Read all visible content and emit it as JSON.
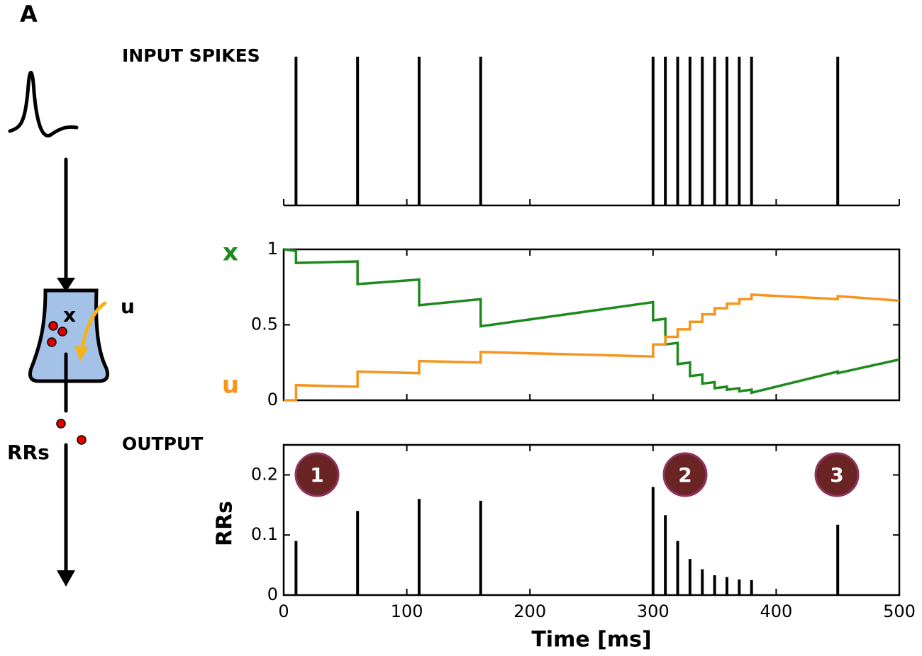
{
  "panel_label": "A",
  "diagram": {
    "pool_label": "x",
    "usage_label": "u",
    "output_label": "RRs"
  },
  "chart_data": [
    {
      "type": "event",
      "title": "INPUT SPIKES",
      "x": [
        10,
        60,
        110,
        160,
        300,
        310,
        320,
        330,
        340,
        350,
        360,
        370,
        380,
        450
      ],
      "color": "#000000",
      "xlim": [
        0,
        500
      ],
      "xticks": [
        0,
        100,
        200,
        300,
        400,
        500
      ]
    },
    {
      "type": "line",
      "x": [
        0,
        10,
        10,
        60,
        60,
        110,
        110,
        160,
        160,
        300,
        300,
        310,
        310,
        320,
        320,
        330,
        330,
        340,
        340,
        350,
        350,
        360,
        360,
        370,
        370,
        380,
        380,
        450,
        450,
        500
      ],
      "series": [
        {
          "name": "x",
          "color": "#1e8a1e",
          "values": [
            1.0,
            0.99,
            0.91,
            0.92,
            0.77,
            0.8,
            0.63,
            0.67,
            0.49,
            0.65,
            0.53,
            0.54,
            0.37,
            0.38,
            0.24,
            0.25,
            0.16,
            0.17,
            0.11,
            0.12,
            0.08,
            0.09,
            0.07,
            0.08,
            0.06,
            0.07,
            0.05,
            0.19,
            0.18,
            0.27
          ]
        },
        {
          "name": "u",
          "color": "#f7941d",
          "values": [
            0,
            0,
            0.1,
            0.09,
            0.19,
            0.18,
            0.26,
            0.25,
            0.32,
            0.29,
            0.37,
            0.37,
            0.42,
            0.42,
            0.47,
            0.47,
            0.52,
            0.52,
            0.57,
            0.57,
            0.61,
            0.61,
            0.64,
            0.64,
            0.67,
            0.67,
            0.7,
            0.67,
            0.69,
            0.66
          ]
        }
      ],
      "xlim": [
        0,
        500
      ],
      "xticks": [
        0,
        100,
        200,
        300,
        400,
        500
      ],
      "ylim": [
        0,
        1
      ],
      "yticks": [
        0,
        0.5,
        1
      ]
    },
    {
      "type": "bar",
      "title": "OUTPUT",
      "x": [
        10,
        60,
        110,
        160,
        300,
        310,
        320,
        330,
        340,
        350,
        360,
        370,
        380,
        450
      ],
      "values": [
        0.09,
        0.14,
        0.16,
        0.157,
        0.18,
        0.133,
        0.09,
        0.06,
        0.043,
        0.033,
        0.03,
        0.026,
        0.025,
        0.117
      ],
      "color": "#000000",
      "xlabel": "Time [ms]",
      "ylabel": "RRs",
      "xlim": [
        0,
        500
      ],
      "xticks": [
        0,
        100,
        200,
        300,
        400,
        500
      ],
      "ylim": [
        0,
        0.25
      ],
      "yticks": [
        0,
        0.1,
        0.2
      ],
      "annotations": [
        "1",
        "2",
        "3"
      ]
    }
  ]
}
